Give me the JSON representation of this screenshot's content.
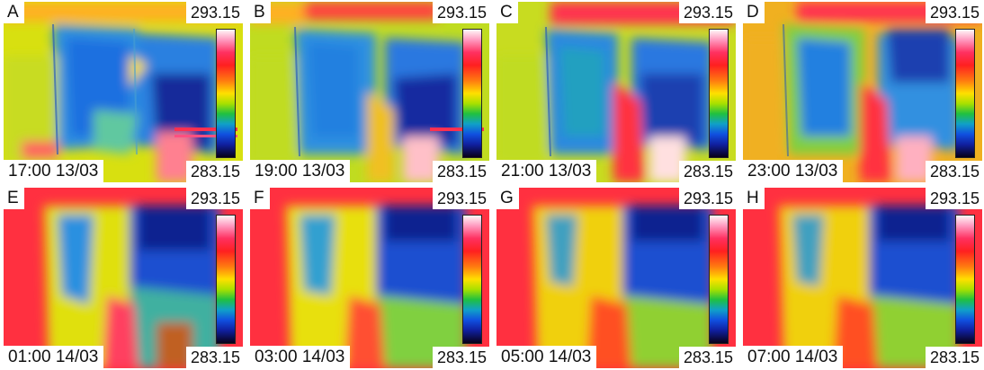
{
  "colorbar": {
    "max_label": "293.15",
    "min_label": "283.15",
    "colors": [
      "#fff8f8",
      "#ff9ac0",
      "#ff3060",
      "#ff2020",
      "#ff7a10",
      "#ffe000",
      "#a8e000",
      "#20c040",
      "#10a0c8",
      "#1050e0",
      "#1020a0",
      "#080018"
    ]
  },
  "panels": [
    {
      "letter": "A",
      "timestamp": "17:00 13/03",
      "tmax": "293.15",
      "tmin": "283.15"
    },
    {
      "letter": "B",
      "timestamp": "19:00 13/03",
      "tmax": "293.15",
      "tmin": "283.15"
    },
    {
      "letter": "C",
      "timestamp": "21:00 13/03",
      "tmax": "293.15",
      "tmin": "283.15"
    },
    {
      "letter": "D",
      "timestamp": "23:00 13/03",
      "tmax": "293.15",
      "tmin": "283.15"
    },
    {
      "letter": "E",
      "timestamp": "01:00 14/03",
      "tmax": "293.15",
      "tmin": "283.15"
    },
    {
      "letter": "F",
      "timestamp": "03:00 14/03",
      "tmax": "293.15",
      "tmin": "283.15"
    },
    {
      "letter": "G",
      "timestamp": "05:00 14/03",
      "tmax": "293.15",
      "tmin": "283.15"
    },
    {
      "letter": "H",
      "timestamp": "07:00 14/03",
      "tmax": "293.15",
      "tmin": "283.15"
    }
  ]
}
